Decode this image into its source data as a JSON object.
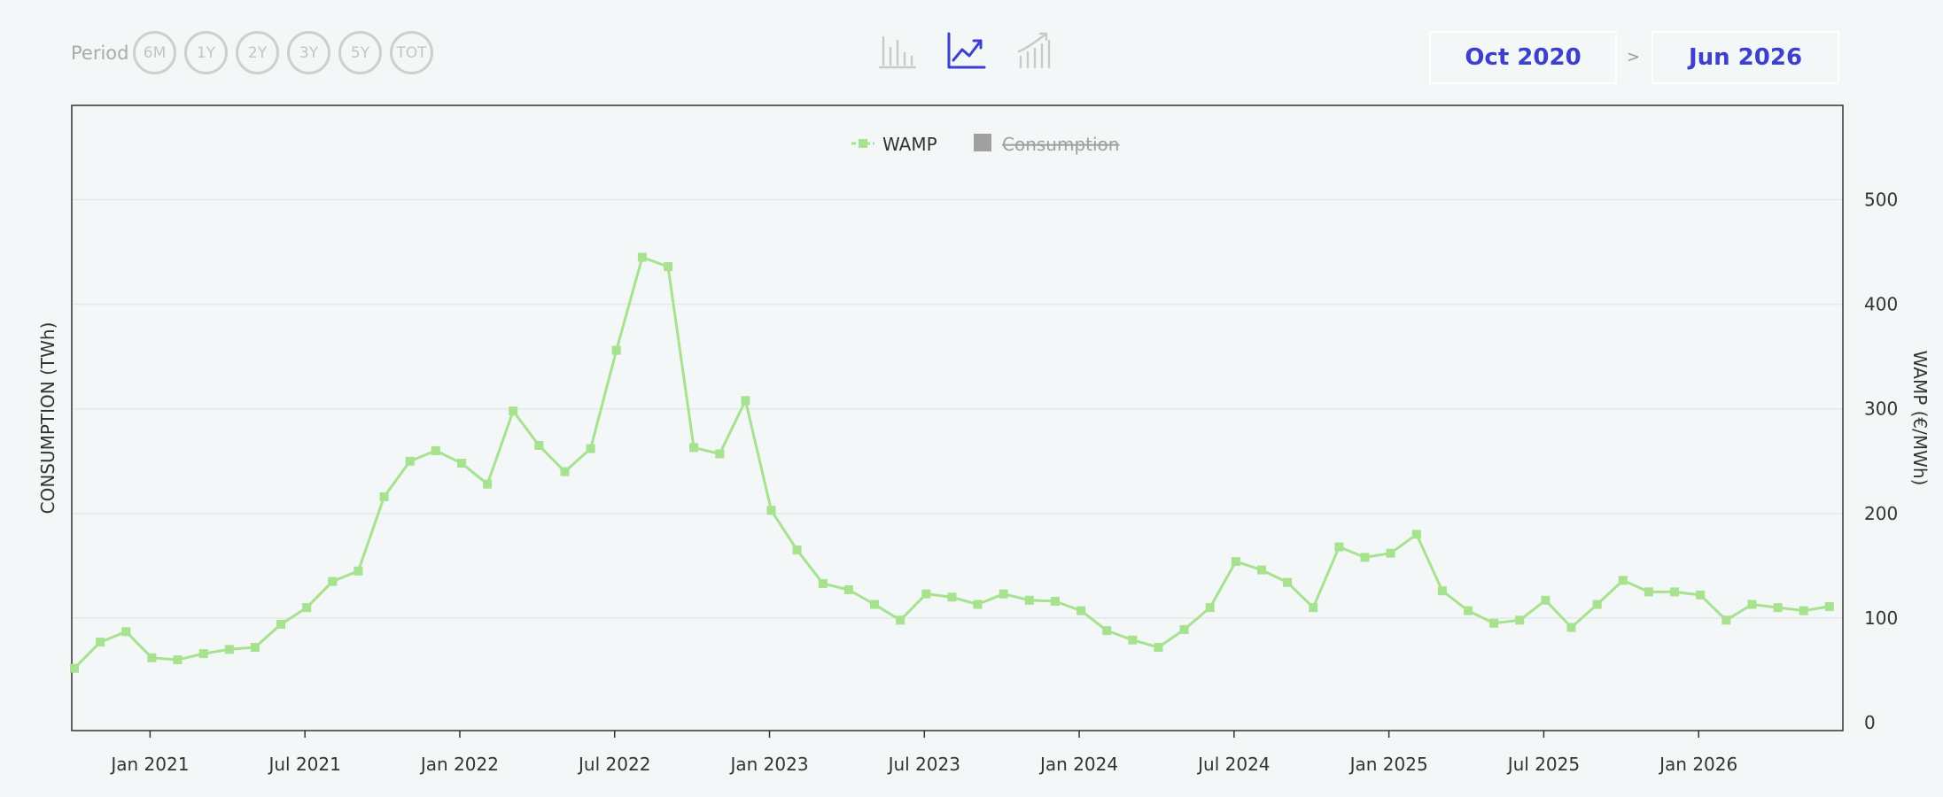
{
  "toolbar": {
    "period_label": "Period",
    "periods": [
      "6M",
      "1Y",
      "2Y",
      "3Y",
      "5Y",
      "TOT"
    ],
    "chart_types": [
      {
        "icon": "bar-chart-icon",
        "active": false
      },
      {
        "icon": "line-chart-icon",
        "active": true
      },
      {
        "icon": "trend-chart-icon",
        "active": false
      }
    ],
    "date_from": "Oct 2020",
    "date_separator": ">",
    "date_to": "Jun 2026"
  },
  "colors": {
    "accent": "#3d3fcf",
    "series_wamp": "#a7e28f",
    "legend_hidden": "#a0a0a0",
    "grid": "#e4e8e8"
  },
  "chart_data": {
    "type": "line",
    "ylabel_left": "CONSUMPTION (TWh)",
    "ylabel_right": "WAMP (€/MWh)",
    "ylim_right": [
      0,
      500
    ],
    "yticks_right": [
      0,
      100,
      200,
      300,
      400,
      500
    ],
    "xtick_labels": [
      "Jan 2021",
      "Jul 2021",
      "Jan 2022",
      "Jul 2022",
      "Jan 2023",
      "Jul 2023",
      "Jan 2024",
      "Jul 2024",
      "Jan 2025",
      "Jul 2025",
      "Jan 2026"
    ],
    "grid": true,
    "legend_position": "top-center",
    "legend": [
      {
        "name": "WAMP",
        "visible": true
      },
      {
        "name": "Consumption",
        "visible": false
      }
    ],
    "x": [
      "Oct 2020",
      "Nov 2020",
      "Dec 2020",
      "Jan 2021",
      "Feb 2021",
      "Mar 2021",
      "Apr 2021",
      "May 2021",
      "Jun 2021",
      "Jul 2021",
      "Aug 2021",
      "Sep 2021",
      "Oct 2021",
      "Nov 2021",
      "Dec 2021",
      "Jan 2022",
      "Feb 2022",
      "Mar 2022",
      "Apr 2022",
      "May 2022",
      "Jun 2022",
      "Jul 2022",
      "Aug 2022",
      "Sep 2022",
      "Oct 2022",
      "Nov 2022",
      "Dec 2022",
      "Jan 2023",
      "Feb 2023",
      "Mar 2023",
      "Apr 2023",
      "May 2023",
      "Jun 2023",
      "Jul 2023",
      "Aug 2023",
      "Sep 2023",
      "Oct 2023",
      "Nov 2023",
      "Dec 2023",
      "Jan 2024",
      "Feb 2024",
      "Mar 2024",
      "Apr 2024",
      "May 2024",
      "Jun 2024",
      "Jul 2024",
      "Aug 2024",
      "Sep 2024",
      "Oct 2024",
      "Nov 2024",
      "Dec 2024",
      "Jan 2025",
      "Feb 2025",
      "Mar 2025",
      "Apr 2025",
      "May 2025",
      "Jun 2025",
      "Jul 2025",
      "Aug 2025",
      "Sep 2025",
      "Oct 2025",
      "Nov 2025",
      "Dec 2025",
      "Jan 2026",
      "Feb 2026",
      "Mar 2026",
      "Apr 2026",
      "May 2026",
      "Jun 2026"
    ],
    "series": [
      {
        "name": "WAMP",
        "values": [
          52,
          77,
          87,
          62,
          60,
          66,
          70,
          72,
          94,
          110,
          135,
          145,
          216,
          250,
          260,
          248,
          228,
          298,
          265,
          240,
          262,
          356,
          445,
          436,
          263,
          257,
          308,
          203,
          165,
          133,
          127,
          113,
          98,
          123,
          120,
          113,
          123,
          117,
          116,
          107,
          88,
          79,
          72,
          89,
          110,
          154,
          146,
          134,
          110,
          168,
          158,
          162,
          180,
          126,
          107,
          95,
          98,
          117,
          91,
          113,
          136,
          125,
          125,
          122,
          98,
          113,
          110,
          107,
          111
        ]
      }
    ]
  }
}
